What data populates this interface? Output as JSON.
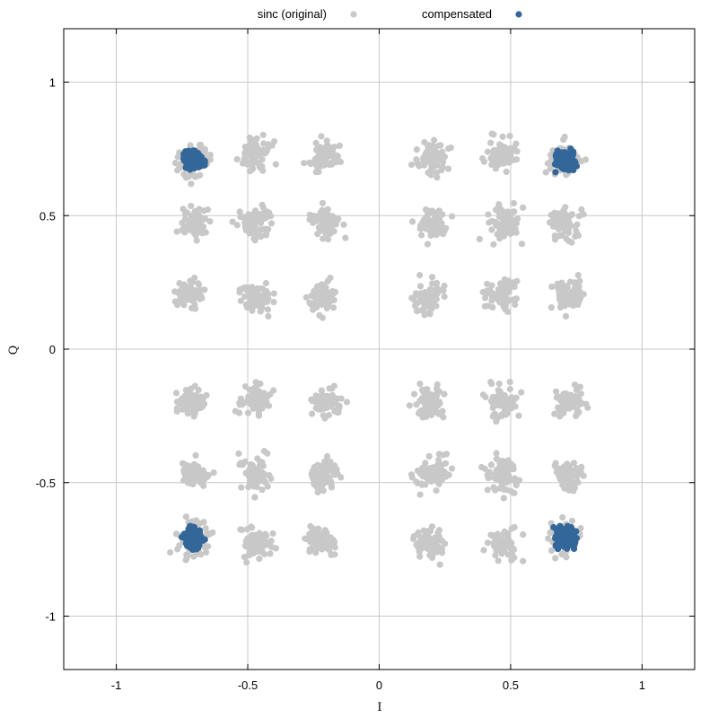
{
  "chart_data": {
    "type": "scatter",
    "xlabel": "I",
    "ylabel": "Q",
    "xlim": [
      -1.2,
      1.2
    ],
    "ylim": [
      -1.2,
      1.2
    ],
    "grid": true,
    "legend_position": "top-center",
    "x_ticks": [
      {
        "value": -1,
        "label": "-1"
      },
      {
        "value": -0.5,
        "label": "-0.5"
      },
      {
        "value": 0,
        "label": "0"
      },
      {
        "value": 0.5,
        "label": "0.5"
      },
      {
        "value": 1,
        "label": "1"
      }
    ],
    "y_ticks": [
      {
        "value": 1,
        "label": "1"
      },
      {
        "value": 0.5,
        "label": "0.5"
      },
      {
        "value": 0,
        "label": "0"
      },
      {
        "value": -0.5,
        "label": "-0.5"
      },
      {
        "value": -1,
        "label": "-1"
      }
    ],
    "series": [
      {
        "name": "sinc (original)",
        "color": "#c8c8c8",
        "clusters": [
          {
            "x": -0.707,
            "y": 0.707,
            "spread": 0.04
          },
          {
            "x": -0.47,
            "y": 0.73,
            "spread": 0.035
          },
          {
            "x": -0.21,
            "y": 0.72,
            "spread": 0.035
          },
          {
            "x": 0.2,
            "y": 0.72,
            "spread": 0.035
          },
          {
            "x": 0.47,
            "y": 0.73,
            "spread": 0.035
          },
          {
            "x": 0.707,
            "y": 0.707,
            "spread": 0.04
          },
          {
            "x": -0.7,
            "y": 0.47,
            "spread": 0.035
          },
          {
            "x": -0.47,
            "y": 0.47,
            "spread": 0.04
          },
          {
            "x": -0.2,
            "y": 0.47,
            "spread": 0.035
          },
          {
            "x": 0.2,
            "y": 0.47,
            "spread": 0.035
          },
          {
            "x": 0.47,
            "y": 0.47,
            "spread": 0.04
          },
          {
            "x": 0.7,
            "y": 0.47,
            "spread": 0.035
          },
          {
            "x": -0.72,
            "y": 0.2,
            "spread": 0.035
          },
          {
            "x": -0.47,
            "y": 0.2,
            "spread": 0.035
          },
          {
            "x": -0.22,
            "y": 0.19,
            "spread": 0.035
          },
          {
            "x": 0.19,
            "y": 0.2,
            "spread": 0.035
          },
          {
            "x": 0.47,
            "y": 0.2,
            "spread": 0.035
          },
          {
            "x": 0.72,
            "y": 0.2,
            "spread": 0.035
          },
          {
            "x": -0.72,
            "y": -0.2,
            "spread": 0.035
          },
          {
            "x": -0.47,
            "y": -0.2,
            "spread": 0.035
          },
          {
            "x": -0.2,
            "y": -0.2,
            "spread": 0.035
          },
          {
            "x": 0.19,
            "y": -0.2,
            "spread": 0.035
          },
          {
            "x": 0.47,
            "y": -0.2,
            "spread": 0.035
          },
          {
            "x": 0.72,
            "y": -0.2,
            "spread": 0.035
          },
          {
            "x": -0.7,
            "y": -0.47,
            "spread": 0.035
          },
          {
            "x": -0.47,
            "y": -0.47,
            "spread": 0.04
          },
          {
            "x": -0.21,
            "y": -0.47,
            "spread": 0.035
          },
          {
            "x": 0.2,
            "y": -0.47,
            "spread": 0.035
          },
          {
            "x": 0.47,
            "y": -0.47,
            "spread": 0.04
          },
          {
            "x": 0.72,
            "y": -0.47,
            "spread": 0.035
          },
          {
            "x": -0.707,
            "y": -0.707,
            "spread": 0.04
          },
          {
            "x": -0.47,
            "y": -0.73,
            "spread": 0.035
          },
          {
            "x": -0.22,
            "y": -0.73,
            "spread": 0.035
          },
          {
            "x": 0.2,
            "y": -0.73,
            "spread": 0.035
          },
          {
            "x": 0.47,
            "y": -0.73,
            "spread": 0.035
          },
          {
            "x": 0.707,
            "y": -0.707,
            "spread": 0.04
          }
        ]
      },
      {
        "name": "compensated",
        "color": "#336699",
        "clusters": [
          {
            "x": -0.707,
            "y": 0.707,
            "spread": 0.02
          },
          {
            "x": 0.707,
            "y": 0.707,
            "spread": 0.02
          },
          {
            "x": -0.707,
            "y": -0.707,
            "spread": 0.02
          },
          {
            "x": 0.707,
            "y": -0.707,
            "spread": 0.02
          }
        ]
      }
    ]
  }
}
